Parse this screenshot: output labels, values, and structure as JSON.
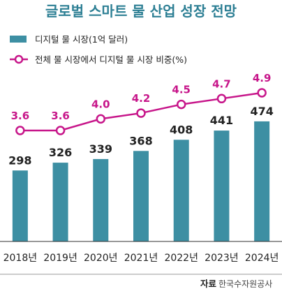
{
  "chart_data": {
    "type": "bar+line",
    "title": "글로벌 스마트 물 산업 성장 전망",
    "categories": [
      "2018년",
      "2019년",
      "2020년",
      "2021년",
      "2022년",
      "2023년",
      "2024년"
    ],
    "series": [
      {
        "name": "디지털 물 시장(1억 달러)",
        "type": "bar",
        "values": [
          298,
          326,
          339,
          368,
          408,
          441,
          474
        ]
      },
      {
        "name": "전체 물 시장에서 디지털 물 시장 비중(%)",
        "type": "line",
        "values": [
          3.6,
          3.6,
          4.0,
          4.2,
          4.5,
          4.7,
          4.9
        ]
      }
    ],
    "legend_position": "top-left",
    "grid": false,
    "colors": {
      "bar": "#3d8fa3",
      "line": "#c7168a",
      "title": "#2d7f94"
    },
    "source_label": "자료",
    "source": "한국수자원공사"
  }
}
